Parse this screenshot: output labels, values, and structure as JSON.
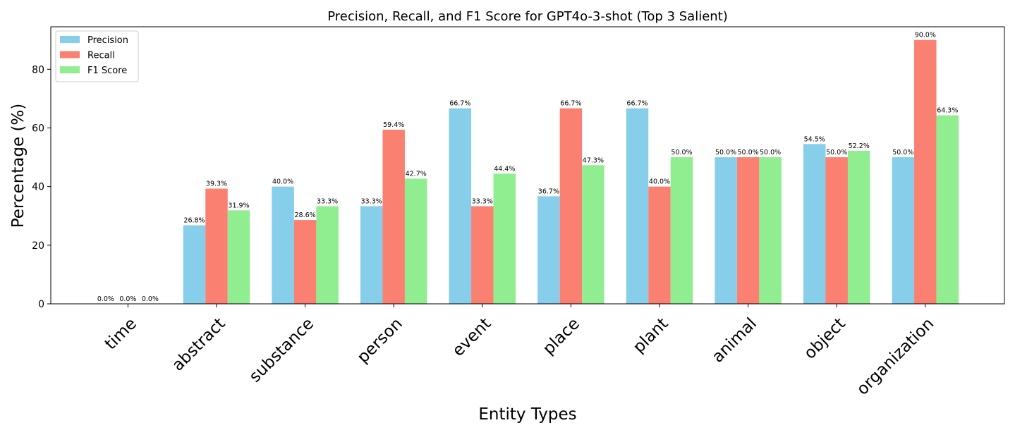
{
  "chart_data": {
    "type": "bar",
    "title": "Precision, Recall, and F1 Score for GPT4o-3-shot (Top 3 Salient)",
    "xlabel": "Entity Types",
    "ylabel": "Percentage (%)",
    "ylim": [
      0,
      94.5
    ],
    "yticks": [
      0,
      20,
      40,
      60,
      80
    ],
    "grid": false,
    "legend_position": "top-left",
    "categories": [
      "time",
      "abstract",
      "substance",
      "person",
      "event",
      "place",
      "plant",
      "animal",
      "object",
      "organization"
    ],
    "series": [
      {
        "name": "Precision",
        "color": "#87CEEB",
        "values": [
          0.0,
          26.8,
          40.0,
          33.3,
          66.7,
          36.7,
          66.7,
          50.0,
          54.5,
          50.0
        ],
        "labels": [
          "0.0%",
          "26.8%",
          "40.0%",
          "33.3%",
          "66.7%",
          "36.7%",
          "66.7%",
          "50.0%",
          "54.5%",
          "50.0%"
        ]
      },
      {
        "name": "Recall",
        "color": "#FA8072",
        "values": [
          0.0,
          39.3,
          28.6,
          59.4,
          33.3,
          66.7,
          40.0,
          50.0,
          50.0,
          90.0
        ],
        "labels": [
          "0.0%",
          "39.3%",
          "28.6%",
          "59.4%",
          "33.3%",
          "66.7%",
          "40.0%",
          "50.0%",
          "50.0%",
          "90.0%"
        ]
      },
      {
        "name": "F1 Score",
        "color": "#90EE90",
        "values": [
          0.0,
          31.9,
          33.3,
          42.7,
          44.4,
          47.3,
          50.0,
          50.0,
          52.2,
          64.3
        ],
        "labels": [
          "0.0%",
          "31.9%",
          "33.3%",
          "42.7%",
          "44.4%",
          "47.3%",
          "50.0%",
          "50.0%",
          "52.2%",
          "64.3%"
        ]
      }
    ]
  }
}
